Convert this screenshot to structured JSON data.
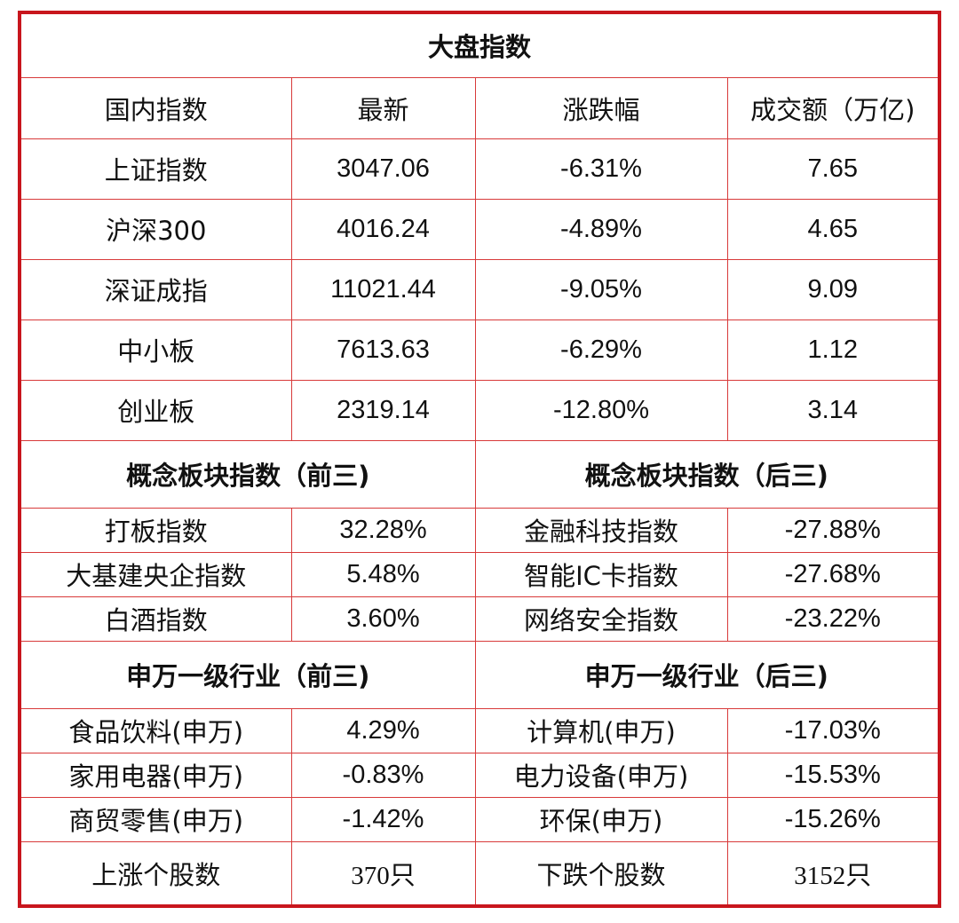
{
  "title": "大盘指数",
  "header": [
    "国内指数",
    "最新",
    "涨跌幅",
    "成交额（万亿)"
  ],
  "indices": [
    {
      "name": "上证指数",
      "latest": "3047.06",
      "change": "-6.31%",
      "turnover": "7.65"
    },
    {
      "name": "沪深300",
      "latest": "4016.24",
      "change": "-4.89%",
      "turnover": "4.65"
    },
    {
      "name": "深证成指",
      "latest": "11021.44",
      "change": "-9.05%",
      "turnover": "9.09"
    },
    {
      "name": "中小板",
      "latest": "7613.63",
      "change": "-6.29%",
      "turnover": "1.12"
    },
    {
      "name": "创业板",
      "latest": "2319.14",
      "change": "-12.80%",
      "turnover": "3.14"
    }
  ],
  "concept": {
    "top_title": "概念板块指数（前三)",
    "bottom_title": "概念板块指数（后三)",
    "rows": [
      {
        "top_name": "打板指数",
        "top_value": "32.28%",
        "bottom_name": "金融科技指数",
        "bottom_value": "-27.88%"
      },
      {
        "top_name": "大基建央企指数",
        "top_value": "5.48%",
        "bottom_name": "智能IC卡指数",
        "bottom_value": "-27.68%"
      },
      {
        "top_name": "白酒指数",
        "top_value": "3.60%",
        "bottom_name": "网络安全指数",
        "bottom_value": "-23.22%"
      }
    ]
  },
  "industry": {
    "top_title": "申万一级行业（前三)",
    "bottom_title": "申万一级行业（后三)",
    "rows": [
      {
        "top_name": "食品饮料(申万)",
        "top_value": "4.29%",
        "bottom_name": "计算机(申万)",
        "bottom_value": "-17.03%"
      },
      {
        "top_name": "家用电器(申万)",
        "top_value": "-0.83%",
        "bottom_name": "电力设备(申万)",
        "bottom_value": "-15.53%"
      },
      {
        "top_name": "商贸零售(申万)",
        "top_value": "-1.42%",
        "bottom_name": "环保(申万)",
        "bottom_value": "-15.26%"
      }
    ]
  },
  "footer": {
    "up_label": "上涨个股数",
    "up_value": "370只",
    "down_label": "下跌个股数",
    "down_value": "3152只"
  },
  "colors": {
    "border": "#c8161d",
    "grid_line": "#d83a3a",
    "text": "#111111",
    "background": "#ffffff"
  }
}
